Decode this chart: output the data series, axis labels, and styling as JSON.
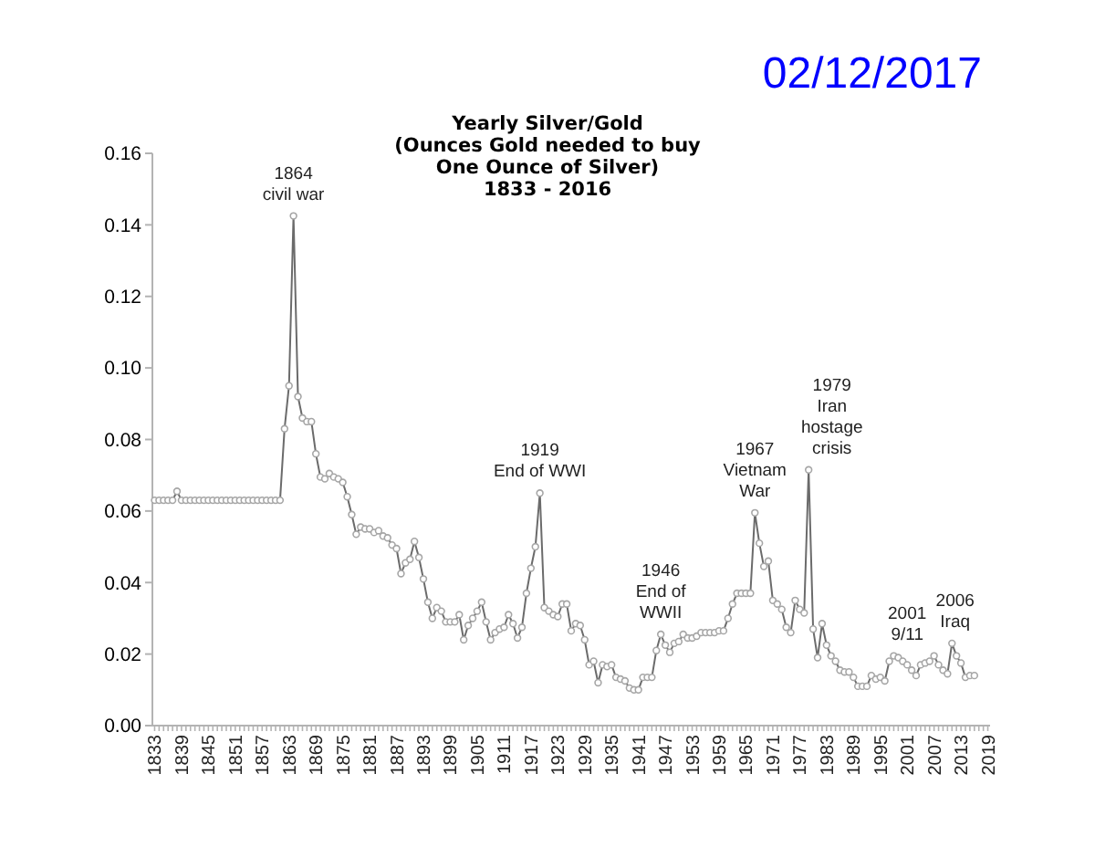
{
  "chart_data": {
    "type": "line",
    "title": "Yearly Silver/Gold\n(Ounces Gold needed to buy\nOne Ounce of Silver)\n1833 - 2016",
    "marker": "circle",
    "x": [
      1833,
      1834,
      1835,
      1836,
      1837,
      1838,
      1839,
      1840,
      1841,
      1842,
      1843,
      1844,
      1845,
      1846,
      1847,
      1848,
      1849,
      1850,
      1851,
      1852,
      1853,
      1854,
      1855,
      1856,
      1857,
      1858,
      1859,
      1860,
      1861,
      1862,
      1863,
      1864,
      1865,
      1866,
      1867,
      1868,
      1869,
      1870,
      1871,
      1872,
      1873,
      1874,
      1875,
      1876,
      1877,
      1878,
      1879,
      1880,
      1881,
      1882,
      1883,
      1884,
      1885,
      1886,
      1887,
      1888,
      1889,
      1890,
      1891,
      1892,
      1893,
      1894,
      1895,
      1896,
      1897,
      1898,
      1899,
      1900,
      1901,
      1902,
      1903,
      1904,
      1905,
      1906,
      1907,
      1908,
      1909,
      1910,
      1911,
      1912,
      1913,
      1914,
      1915,
      1916,
      1917,
      1918,
      1919,
      1920,
      1921,
      1922,
      1923,
      1924,
      1925,
      1926,
      1927,
      1928,
      1929,
      1930,
      1931,
      1932,
      1933,
      1934,
      1935,
      1936,
      1937,
      1938,
      1939,
      1940,
      1941,
      1942,
      1943,
      1944,
      1945,
      1946,
      1947,
      1948,
      1949,
      1950,
      1951,
      1952,
      1953,
      1954,
      1955,
      1956,
      1957,
      1958,
      1959,
      1960,
      1961,
      1962,
      1963,
      1964,
      1965,
      1966,
      1967,
      1968,
      1969,
      1970,
      1971,
      1972,
      1973,
      1974,
      1975,
      1976,
      1977,
      1978,
      1979,
      1980,
      1981,
      1982,
      1983,
      1984,
      1985,
      1986,
      1987,
      1988,
      1989,
      1990,
      1991,
      1992,
      1993,
      1994,
      1995,
      1996,
      1997,
      1998,
      1999,
      2000,
      2001,
      2002,
      2003,
      2004,
      2005,
      2006,
      2007,
      2008,
      2009,
      2010,
      2011,
      2012,
      2013,
      2014,
      2015,
      2016
    ],
    "series": [
      {
        "color": "#6b6b6b",
        "values": [
          0.063,
          0.063,
          0.063,
          0.063,
          0.063,
          0.0655,
          0.063,
          0.063,
          0.063,
          0.063,
          0.063,
          0.063,
          0.063,
          0.063,
          0.063,
          0.063,
          0.063,
          0.063,
          0.063,
          0.063,
          0.063,
          0.063,
          0.063,
          0.063,
          0.063,
          0.063,
          0.063,
          0.063,
          0.063,
          0.083,
          0.095,
          0.1425,
          0.092,
          0.086,
          0.085,
          0.085,
          0.076,
          0.0695,
          0.069,
          0.0705,
          0.0695,
          0.069,
          0.068,
          0.064,
          0.059,
          0.0535,
          0.0555,
          0.055,
          0.055,
          0.054,
          0.0545,
          0.053,
          0.0525,
          0.0505,
          0.0495,
          0.0425,
          0.0455,
          0.0465,
          0.0515,
          0.047,
          0.041,
          0.0345,
          0.03,
          0.033,
          0.032,
          0.029,
          0.029,
          0.029,
          0.031,
          0.024,
          0.028,
          0.03,
          0.032,
          0.0345,
          0.029,
          0.024,
          0.026,
          0.027,
          0.0275,
          0.031,
          0.0285,
          0.0245,
          0.0275,
          0.037,
          0.044,
          0.05,
          0.065,
          0.033,
          0.032,
          0.031,
          0.0305,
          0.034,
          0.034,
          0.0265,
          0.0285,
          0.028,
          0.024,
          0.017,
          0.018,
          0.012,
          0.017,
          0.0165,
          0.017,
          0.0135,
          0.013,
          0.0125,
          0.0105,
          0.01,
          0.01,
          0.0135,
          0.0135,
          0.0135,
          0.021,
          0.0255,
          0.0225,
          0.0205,
          0.023,
          0.0235,
          0.0255,
          0.0245,
          0.0245,
          0.025,
          0.026,
          0.026,
          0.026,
          0.026,
          0.0265,
          0.0265,
          0.03,
          0.034,
          0.037,
          0.037,
          0.037,
          0.037,
          0.0595,
          0.051,
          0.0445,
          0.046,
          0.035,
          0.034,
          0.0325,
          0.0275,
          0.026,
          0.035,
          0.0325,
          0.0315,
          0.0715,
          0.027,
          0.019,
          0.0285,
          0.0225,
          0.0195,
          0.018,
          0.0155,
          0.015,
          0.015,
          0.0135,
          0.011,
          0.011,
          0.011,
          0.014,
          0.013,
          0.0135,
          0.0125,
          0.018,
          0.0195,
          0.019,
          0.018,
          0.017,
          0.0155,
          0.014,
          0.017,
          0.0175,
          0.018,
          0.0195,
          0.017,
          0.0155,
          0.0145,
          0.023,
          0.0195,
          0.0175,
          0.0135,
          0.014,
          0.014
        ]
      }
    ],
    "xlim": [
      1832.5,
      2019.5
    ],
    "ylim": [
      0,
      0.16
    ],
    "yticks": [
      {
        "value": 0,
        "label": "0.00"
      },
      {
        "value": 0.02,
        "label": "0.02"
      },
      {
        "value": 0.04,
        "label": "0.04"
      },
      {
        "value": 0.06,
        "label": "0.06"
      },
      {
        "value": 0.08,
        "label": "0.08"
      },
      {
        "value": 0.1,
        "label": "0.10"
      },
      {
        "value": 0.12,
        "label": "0.12"
      },
      {
        "value": 0.14,
        "label": "0.14"
      },
      {
        "value": 0.16,
        "label": "0.16"
      }
    ],
    "xticks": [
      1833,
      {
        "value": 1834,
        "label": null
      },
      {
        "value": 1835,
        "label": null
      },
      {
        "value": 1836,
        "label": null
      },
      {
        "value": 1837,
        "label": null
      },
      {
        "value": 1838,
        "label": null
      },
      1839,
      {
        "value": 1840,
        "label": null
      },
      {
        "value": 1841,
        "label": null
      },
      {
        "value": 1842,
        "label": null
      },
      {
        "value": 1843,
        "label": null
      },
      {
        "value": 1844,
        "label": null
      },
      1845,
      {
        "value": 1846,
        "label": null
      },
      {
        "value": 1847,
        "label": null
      },
      {
        "value": 1848,
        "label": null
      },
      {
        "value": 1849,
        "label": null
      },
      {
        "value": 1850,
        "label": null
      },
      1851,
      {
        "value": 1852,
        "label": null
      },
      {
        "value": 1853,
        "label": null
      },
      {
        "value": 1854,
        "label": null
      },
      {
        "value": 1855,
        "label": null
      },
      {
        "value": 1856,
        "label": null
      },
      1857,
      {
        "value": 1858,
        "label": null
      },
      {
        "value": 1859,
        "label": null
      },
      {
        "value": 1860,
        "label": null
      },
      {
        "value": 1861,
        "label": null
      },
      {
        "value": 1862,
        "label": null
      },
      1863,
      {
        "value": 1864,
        "label": null
      },
      {
        "value": 1865,
        "label": null
      },
      {
        "value": 1866,
        "label": null
      },
      {
        "value": 1867,
        "label": null
      },
      {
        "value": 1868,
        "label": null
      },
      1869,
      {
        "value": 1870,
        "label": null
      },
      {
        "value": 1871,
        "label": null
      },
      {
        "value": 1872,
        "label": null
      },
      {
        "value": 1873,
        "label": null
      },
      {
        "value": 1874,
        "label": null
      },
      1875,
      {
        "value": 1876,
        "label": null
      },
      {
        "value": 1877,
        "label": null
      },
      {
        "value": 1878,
        "label": null
      },
      {
        "value": 1879,
        "label": null
      },
      {
        "value": 1880,
        "label": null
      },
      1881,
      {
        "value": 1882,
        "label": null
      },
      {
        "value": 1883,
        "label": null
      },
      {
        "value": 1884,
        "label": null
      },
      {
        "value": 1885,
        "label": null
      },
      {
        "value": 1886,
        "label": null
      },
      1887,
      {
        "value": 1888,
        "label": null
      },
      {
        "value": 1889,
        "label": null
      },
      {
        "value": 1890,
        "label": null
      },
      {
        "value": 1891,
        "label": null
      },
      {
        "value": 1892,
        "label": null
      },
      1893,
      {
        "value": 1894,
        "label": null
      },
      {
        "value": 1895,
        "label": null
      },
      {
        "value": 1896,
        "label": null
      },
      {
        "value": 1897,
        "label": null
      },
      {
        "value": 1898,
        "label": null
      },
      1899,
      {
        "value": 1900,
        "label": null
      },
      {
        "value": 1901,
        "label": null
      },
      {
        "value": 1902,
        "label": null
      },
      {
        "value": 1903,
        "label": null
      },
      {
        "value": 1904,
        "label": null
      },
      1905,
      {
        "value": 1906,
        "label": null
      },
      {
        "value": 1907,
        "label": null
      },
      {
        "value": 1908,
        "label": null
      },
      {
        "value": 1909,
        "label": null
      },
      {
        "value": 1910,
        "label": null
      },
      1911,
      {
        "value": 1912,
        "label": null
      },
      {
        "value": 1913,
        "label": null
      },
      {
        "value": 1914,
        "label": null
      },
      {
        "value": 1915,
        "label": null
      },
      {
        "value": 1916,
        "label": null
      },
      1917,
      {
        "value": 1918,
        "label": null
      },
      {
        "value": 1919,
        "label": null
      },
      {
        "value": 1920,
        "label": null
      },
      {
        "value": 1921,
        "label": null
      },
      {
        "value": 1922,
        "label": null
      },
      1923,
      {
        "value": 1924,
        "label": null
      },
      {
        "value": 1925,
        "label": null
      },
      {
        "value": 1926,
        "label": null
      },
      {
        "value": 1927,
        "label": null
      },
      {
        "value": 1928,
        "label": null
      },
      1929,
      {
        "value": 1930,
        "label": null
      },
      {
        "value": 1931,
        "label": null
      },
      {
        "value": 1932,
        "label": null
      },
      {
        "value": 1933,
        "label": null
      },
      {
        "value": 1934,
        "label": null
      },
      1935,
      {
        "value": 1936,
        "label": null
      },
      {
        "value": 1937,
        "label": null
      },
      {
        "value": 1938,
        "label": null
      },
      {
        "value": 1939,
        "label": null
      },
      {
        "value": 1940,
        "label": null
      },
      1941,
      {
        "value": 1942,
        "label": null
      },
      {
        "value": 1943,
        "label": null
      },
      {
        "value": 1944,
        "label": null
      },
      {
        "value": 1945,
        "label": null
      },
      {
        "value": 1946,
        "label": null
      },
      1947,
      {
        "value": 1948,
        "label": null
      },
      {
        "value": 1949,
        "label": null
      },
      {
        "value": 1950,
        "label": null
      },
      {
        "value": 1951,
        "label": null
      },
      {
        "value": 1952,
        "label": null
      },
      1953,
      {
        "value": 1954,
        "label": null
      },
      {
        "value": 1955,
        "label": null
      },
      {
        "value": 1956,
        "label": null
      },
      {
        "value": 1957,
        "label": null
      },
      {
        "value": 1958,
        "label": null
      },
      1959,
      {
        "value": 1960,
        "label": null
      },
      {
        "value": 1961,
        "label": null
      },
      {
        "value": 1962,
        "label": null
      },
      {
        "value": 1963,
        "label": null
      },
      {
        "value": 1964,
        "label": null
      },
      1965,
      {
        "value": 1966,
        "label": null
      },
      {
        "value": 1967,
        "label": null
      },
      {
        "value": 1968,
        "label": null
      },
      {
        "value": 1969,
        "label": null
      },
      {
        "value": 1970,
        "label": null
      },
      1971,
      {
        "value": 1972,
        "label": null
      },
      {
        "value": 1973,
        "label": null
      },
      {
        "value": 1974,
        "label": null
      },
      {
        "value": 1975,
        "label": null
      },
      {
        "value": 1976,
        "label": null
      },
      1977,
      {
        "value": 1978,
        "label": null
      },
      {
        "value": 1979,
        "label": null
      },
      {
        "value": 1980,
        "label": null
      },
      {
        "value": 1981,
        "label": null
      },
      {
        "value": 1982,
        "label": null
      },
      1983,
      {
        "value": 1984,
        "label": null
      },
      {
        "value": 1985,
        "label": null
      },
      {
        "value": 1986,
        "label": null
      },
      {
        "value": 1987,
        "label": null
      },
      {
        "value": 1988,
        "label": null
      },
      1989,
      {
        "value": 1990,
        "label": null
      },
      {
        "value": 1991,
        "label": null
      },
      {
        "value": 1992,
        "label": null
      },
      {
        "value": 1993,
        "label": null
      },
      {
        "value": 1994,
        "label": null
      },
      1995,
      {
        "value": 1996,
        "label": null
      },
      {
        "value": 1997,
        "label": null
      },
      {
        "value": 1998,
        "label": null
      },
      {
        "value": 1999,
        "label": null
      },
      {
        "value": 2000,
        "label": null
      },
      2001,
      {
        "value": 2002,
        "label": null
      },
      {
        "value": 2003,
        "label": null
      },
      {
        "value": 2004,
        "label": null
      },
      {
        "value": 2005,
        "label": null
      },
      {
        "value": 2006,
        "label": null
      },
      2007,
      {
        "value": 2008,
        "label": null
      },
      {
        "value": 2009,
        "label": null
      },
      {
        "value": 2010,
        "label": null
      },
      {
        "value": 2011,
        "label": null
      },
      {
        "value": 2012,
        "label": null
      },
      2013,
      {
        "value": 2014,
        "label": null
      },
      {
        "value": 2015,
        "label": null
      },
      {
        "value": 2016,
        "label": null
      },
      {
        "value": 2017,
        "label": null
      },
      {
        "value": 2018,
        "label": null
      },
      2019
    ],
    "annotations": [
      "02/12/2017",
      {
        "text": "1864\ncivil war",
        "x": 1864,
        "y": 0.1425
      },
      {
        "text": "1919\nEnd of WWI",
        "x": 1919,
        "y": 0.065
      },
      {
        "text": "1946\nEnd of\nWWII",
        "x": 1946,
        "y": 0.0255
      },
      {
        "text": "1967\nVietnam\nWar",
        "x": 1967,
        "y": 0.0595
      },
      {
        "text": "1979\nIran\nhostage\ncrisis",
        "x": 1979,
        "y": 0.0715
      },
      {
        "text": "2001\n9/11",
        "x": 2001,
        "y": 0.017
      },
      {
        "text": "2006\nIraq",
        "x": 2006,
        "y": 0.018
      }
    ]
  }
}
